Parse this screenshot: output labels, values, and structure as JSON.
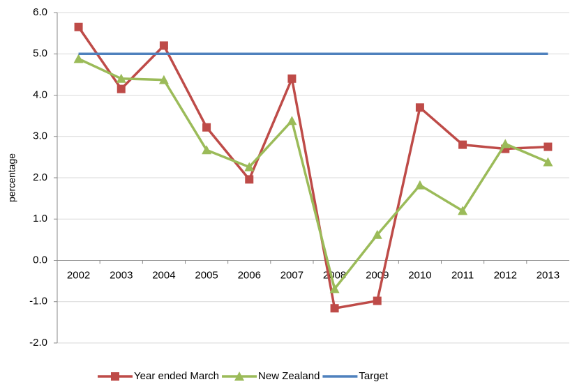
{
  "chart_data": {
    "type": "line",
    "y_label": "percentage",
    "categories": [
      "2002",
      "2003",
      "2004",
      "2005",
      "2006",
      "2007",
      "2008",
      "2009",
      "2010",
      "2011",
      "2012",
      "2013"
    ],
    "series": [
      {
        "name": "Year ended March",
        "color": "#be4b48",
        "marker": "square",
        "values": [
          5.65,
          4.15,
          5.2,
          3.22,
          1.96,
          4.4,
          -1.16,
          -0.98,
          3.7,
          2.8,
          2.7,
          2.75
        ]
      },
      {
        "name": "New Zealand",
        "color": "#9bbb59",
        "marker": "triangle",
        "values": [
          4.88,
          4.4,
          4.37,
          2.67,
          2.26,
          3.38,
          -0.69,
          0.62,
          1.82,
          1.2,
          2.82,
          2.38
        ]
      },
      {
        "name": "Target",
        "color": "#4f81bd",
        "marker": "none",
        "values": [
          5,
          5,
          5,
          5,
          5,
          5,
          5,
          5,
          5,
          5,
          5,
          5
        ]
      }
    ],
    "ylim": [
      -2,
      6
    ],
    "yticks": [
      {
        "value": -2,
        "label": "-2.0"
      },
      {
        "value": -1,
        "label": "-1.0"
      },
      {
        "value": 0,
        "label": "0.0"
      },
      {
        "value": 1,
        "label": "1.0"
      },
      {
        "value": 2,
        "label": "2.0"
      },
      {
        "value": 3,
        "label": "3.0"
      },
      {
        "value": 4,
        "label": "4.0"
      },
      {
        "value": 5,
        "label": "5.0"
      },
      {
        "value": 6,
        "label": "6.0"
      }
    ],
    "grid": true,
    "legend": "bottom"
  }
}
